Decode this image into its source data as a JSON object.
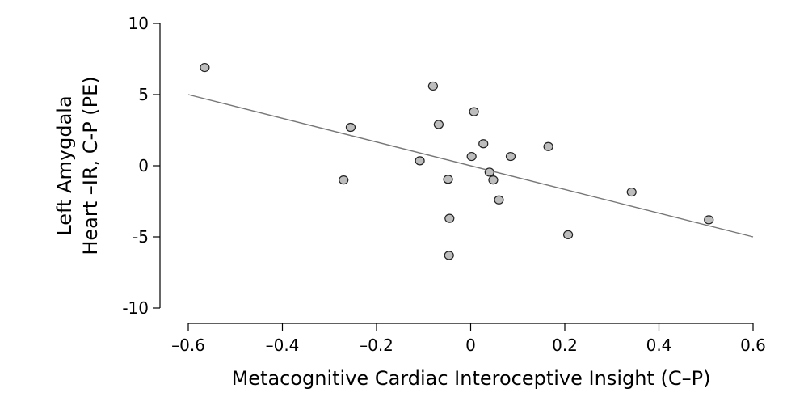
{
  "chart_data": {
    "type": "scatter",
    "xlabel": "Metacognitive Cardiac Interoceptive Insight (C–P)",
    "ylabel": [
      "Left Amygdala",
      "Heart –IR, C-P (PE)"
    ],
    "xlim": [
      -0.6,
      0.6
    ],
    "ylim": [
      -10,
      10
    ],
    "xticks": [
      -0.6,
      -0.4,
      -0.2,
      0,
      0.2,
      0.4,
      0.6
    ],
    "xtick_labels": [
      "–0.6",
      "–0.4",
      "–0.2",
      "0",
      "0.2",
      "0.4",
      "0.6"
    ],
    "yticks": [
      -10,
      -5,
      0,
      5,
      10
    ],
    "ytick_labels": [
      "-10",
      "-5",
      "0",
      "5",
      "10"
    ],
    "grid": false,
    "points": [
      {
        "x": -0.565,
        "y": 6.9
      },
      {
        "x": -0.27,
        "y": -1.0
      },
      {
        "x": -0.255,
        "y": 2.7
      },
      {
        "x": -0.108,
        "y": 0.35
      },
      {
        "x": -0.08,
        "y": 5.6
      },
      {
        "x": -0.068,
        "y": 2.9
      },
      {
        "x": -0.048,
        "y": -0.95
      },
      {
        "x": -0.045,
        "y": -3.7
      },
      {
        "x": -0.046,
        "y": -6.3
      },
      {
        "x": 0.002,
        "y": 0.65
      },
      {
        "x": 0.007,
        "y": 3.8
      },
      {
        "x": 0.027,
        "y": 1.55
      },
      {
        "x": 0.04,
        "y": -0.45
      },
      {
        "x": 0.048,
        "y": -1.0
      },
      {
        "x": 0.06,
        "y": -2.4
      },
      {
        "x": 0.085,
        "y": 0.65
      },
      {
        "x": 0.165,
        "y": 1.35
      },
      {
        "x": 0.207,
        "y": -4.85
      },
      {
        "x": 0.342,
        "y": -1.85
      },
      {
        "x": 0.506,
        "y": -3.8
      }
    ],
    "fit_line": {
      "x": [
        -0.6,
        0.6
      ],
      "y": [
        5.0,
        -5.0
      ]
    },
    "colors": {
      "point_fill": "#bdbdbd",
      "point_stroke": "#222222",
      "fit_line": "#777777"
    }
  }
}
